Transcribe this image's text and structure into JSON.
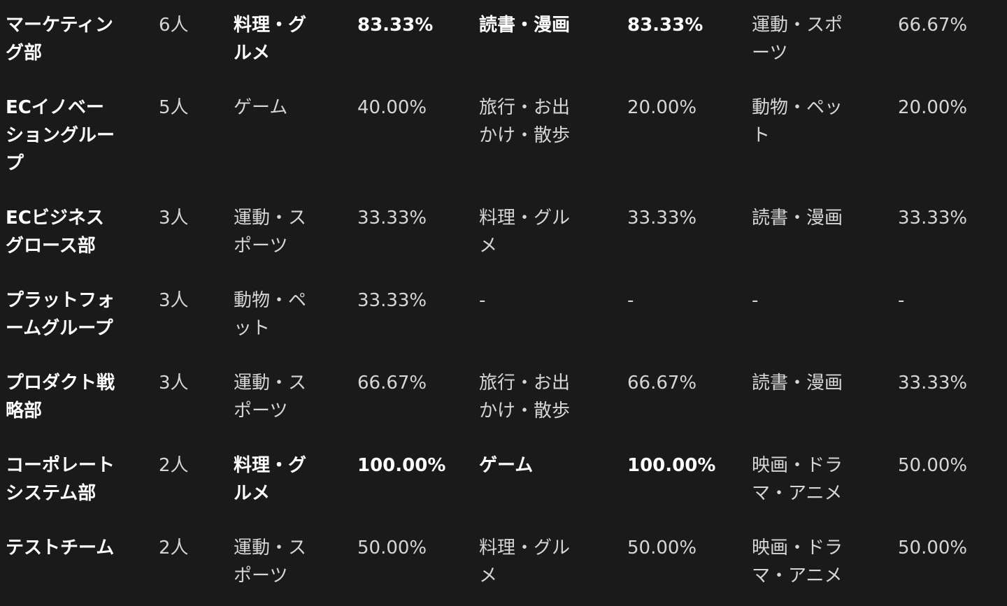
{
  "table": {
    "colors": {
      "background": "#1a1a1a",
      "text": "#d6d6d6",
      "emphasis_text": "#ffffff"
    },
    "rows": [
      {
        "department": "マーケティング部",
        "count": "6人",
        "cells": [
          {
            "hobby": "料理・グルメ",
            "pct": "83.33%",
            "bold": true
          },
          {
            "hobby": "読書・漫画",
            "pct": "83.33%",
            "bold": true
          },
          {
            "hobby": "運動・スポーツ",
            "pct": "66.67%",
            "bold": false
          }
        ]
      },
      {
        "department": "ECイノベーショングループ",
        "count": "5人",
        "cells": [
          {
            "hobby": "ゲーム",
            "pct": "40.00%",
            "bold": false
          },
          {
            "hobby": "旅行・お出かけ・散歩",
            "pct": "20.00%",
            "bold": false
          },
          {
            "hobby": "動物・ペット",
            "pct": "20.00%",
            "bold": false
          }
        ]
      },
      {
        "department": "ECビジネスグロース部",
        "count": "3人",
        "cells": [
          {
            "hobby": "運動・スポーツ",
            "pct": "33.33%",
            "bold": false
          },
          {
            "hobby": "料理・グルメ",
            "pct": "33.33%",
            "bold": false
          },
          {
            "hobby": "読書・漫画",
            "pct": "33.33%",
            "bold": false
          }
        ]
      },
      {
        "department": "プラットフォームグループ",
        "count": "3人",
        "cells": [
          {
            "hobby": "動物・ペット",
            "pct": "33.33%",
            "bold": false
          },
          {
            "hobby": "-",
            "pct": "-",
            "bold": false
          },
          {
            "hobby": "-",
            "pct": "-",
            "bold": false
          }
        ]
      },
      {
        "department": "プロダクト戦略部",
        "count": "3人",
        "cells": [
          {
            "hobby": "運動・スポーツ",
            "pct": "66.67%",
            "bold": false
          },
          {
            "hobby": "旅行・お出かけ・散歩",
            "pct": "66.67%",
            "bold": false
          },
          {
            "hobby": "読書・漫画",
            "pct": "33.33%",
            "bold": false
          }
        ]
      },
      {
        "department": "コーポレートシステム部",
        "count": "2人",
        "cells": [
          {
            "hobby": "料理・グルメ",
            "pct": "100.00%",
            "bold": true
          },
          {
            "hobby": "ゲーム",
            "pct": "100.00%",
            "bold": true
          },
          {
            "hobby": "映画・ドラマ・アニメ",
            "pct": "50.00%",
            "bold": false
          }
        ]
      },
      {
        "department": "テストチーム",
        "count": "2人",
        "cells": [
          {
            "hobby": "運動・スポーツ",
            "pct": "50.00%",
            "bold": false
          },
          {
            "hobby": "料理・グルメ",
            "pct": "50.00%",
            "bold": false
          },
          {
            "hobby": "映画・ドラマ・アニメ",
            "pct": "50.00%",
            "bold": false
          }
        ]
      }
    ]
  }
}
